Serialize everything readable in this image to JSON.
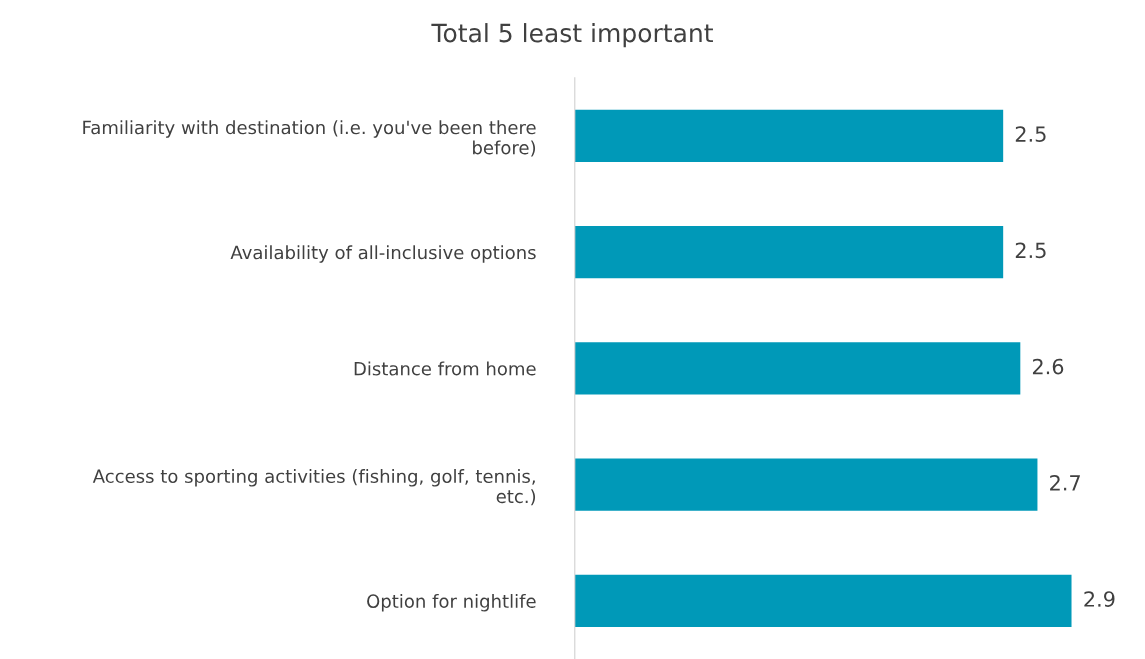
{
  "chart_data": {
    "type": "bar",
    "orientation": "horizontal",
    "title": "Total 5 least important",
    "categories": [
      "Familiarity with destination (i.e. you've been there before)",
      "Availability of all-inclusive options",
      "Distance from home",
      "Access to sporting activities (fishing, golf, tennis, etc.)",
      "Option for nightlife"
    ],
    "values": [
      2.5,
      2.5,
      2.6,
      2.7,
      2.9
    ],
    "color": "#0099b8",
    "data_labels": true,
    "grid": false,
    "tick_labels": "y"
  }
}
